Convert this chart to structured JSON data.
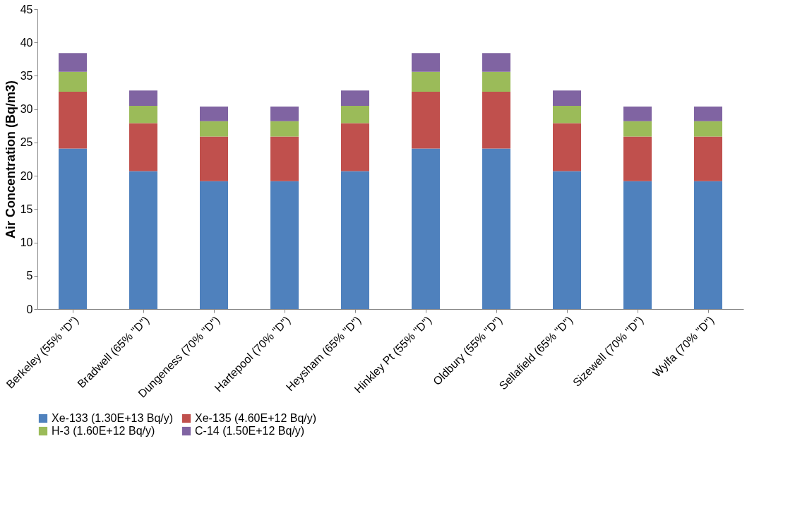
{
  "chart_data": {
    "type": "bar",
    "stacked": true,
    "ylabel": "Air Concentration (Bq/m3)",
    "categories": [
      "Berkeley (55% \"D\")",
      "Bradwell (65% \"D\")",
      "Dungeness (70% \"D\")",
      "Hartepool (70% \"D\")",
      "Heysham (65% \"D\")",
      "Hinkley Pt (55% \"D\")",
      "Oldbury (55% \"D\")",
      "Sellafield (65% \"D\")",
      "Sizewell (70% \"D\")",
      "Wylfa (70% \"D\")"
    ],
    "series": [
      {
        "name": "Xe-133 (1.30E+13 Bq/y)",
        "color": "#4f81bd",
        "values": [
          24.1,
          20.7,
          19.2,
          19.2,
          20.7,
          24.1,
          24.1,
          20.7,
          19.2,
          19.2
        ]
      },
      {
        "name": "Xe-135 (4.60E+12 Bq/y)",
        "color": "#c0504d",
        "values": [
          8.5,
          7.2,
          6.7,
          6.7,
          7.2,
          8.5,
          8.5,
          7.2,
          6.7,
          6.7
        ]
      },
      {
        "name": "H-3 (1.60E+12 Bq/y)",
        "color": "#9bbb59",
        "values": [
          3.0,
          2.6,
          2.3,
          2.3,
          2.6,
          3.0,
          3.0,
          2.6,
          2.3,
          2.3
        ]
      },
      {
        "name": "C-14 (1.50E+12 Bq/y)",
        "color": "#8064a2",
        "values": [
          2.8,
          2.3,
          2.2,
          2.2,
          2.3,
          2.8,
          2.8,
          2.3,
          2.2,
          2.2
        ]
      }
    ],
    "ylim": [
      0,
      45
    ],
    "yticks": [
      0,
      5,
      10,
      15,
      20,
      25,
      30,
      35,
      40,
      45
    ],
    "grid": false,
    "legend": "bottom"
  }
}
